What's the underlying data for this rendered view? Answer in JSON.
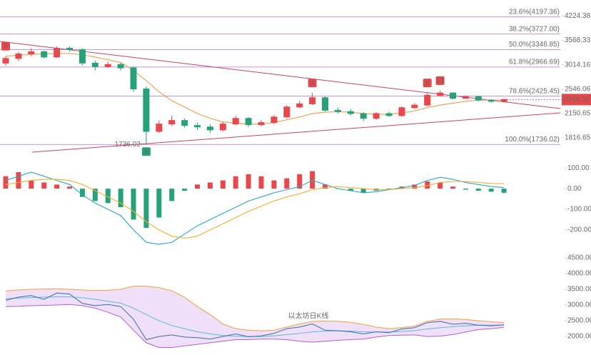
{
  "chart_data": [
    {
      "type": "candlestick",
      "log_scale": true,
      "ylim": [
        1630,
        4720
      ],
      "yticks": [
        4224.38,
        3568.33,
        3014.16,
        2546.06,
        2150.65,
        1816.65
      ],
      "up_color": "#e8474c",
      "down_color": "#26a17a",
      "open": [
        3050,
        3150,
        3250,
        3300,
        3180,
        3380,
        3350,
        3050,
        2980,
        3020,
        2950,
        2550,
        1900,
        2000,
        2050,
        1980,
        1960,
        1920,
        2000,
        2080,
        1990,
        2020,
        2100,
        2250,
        2300,
        2400,
        2200,
        2180,
        2150,
        2080,
        2150,
        2120,
        2240,
        2280,
        2440,
        2480,
        2390,
        2420,
        2360,
        2340
      ],
      "high": [
        3200,
        3300,
        3380,
        3320,
        3420,
        3420,
        3380,
        3100,
        3080,
        3060,
        2980,
        2600,
        2050,
        2120,
        2080,
        2020,
        2000,
        2030,
        2120,
        2100,
        2060,
        2130,
        2280,
        2350,
        2480,
        2420,
        2240,
        2220,
        2170,
        2170,
        2180,
        2260,
        2310,
        2480,
        2520,
        2490,
        2440,
        2430,
        2380,
        2390
      ],
      "low": [
        3000,
        3100,
        3200,
        3150,
        3160,
        3300,
        3000,
        2900,
        2950,
        2900,
        2500,
        1736.02,
        1880,
        1970,
        1950,
        1920,
        1880,
        1900,
        1980,
        1960,
        1970,
        2000,
        2080,
        2230,
        2280,
        2180,
        2150,
        2120,
        2040,
        2060,
        2100,
        2100,
        2220,
        2260,
        2420,
        2370,
        2380,
        2340,
        2320,
        2330
      ],
      "close": [
        3150,
        3250,
        3300,
        3180,
        3380,
        3350,
        3050,
        2980,
        3020,
        2950,
        2550,
        1900,
        2000,
        2050,
        1980,
        1960,
        1920,
        2000,
        2080,
        1990,
        2020,
        2100,
        2250,
        2300,
        2400,
        2200,
        2180,
        2150,
        2080,
        2150,
        2120,
        2240,
        2280,
        2440,
        2480,
        2390,
        2420,
        2360,
        2340,
        2369.26
      ],
      "ma": [
        3200,
        3220,
        3240,
        3250,
        3260,
        3260,
        3230,
        3180,
        3120,
        3060,
        2900,
        2700,
        2500,
        2350,
        2250,
        2150,
        2080,
        2030,
        2010,
        2000,
        2000,
        2020,
        2060,
        2100,
        2150,
        2170,
        2180,
        2170,
        2150,
        2140,
        2140,
        2160,
        2190,
        2240,
        2280,
        2310,
        2340,
        2360,
        2360,
        2365
      ],
      "ma_color": "#f0a35e",
      "fib_color": "#9b4fc0",
      "fib_levels": [
        {
          "value": 4197.36,
          "label": "23.6%(4197.36)"
        },
        {
          "value": 3727.0,
          "label": "38.2%(3727.00)"
        },
        {
          "value": 3346.85,
          "label": "50.0%(3346.85)"
        },
        {
          "value": 2966.69,
          "label": "61.8%(2966.69)"
        },
        {
          "value": 2425.45,
          "label": "78.6%(2425.45)"
        },
        {
          "value": 1736.02,
          "label": "100.0%(1736.02)"
        }
      ],
      "td": [
        9,
        null,
        null,
        null,
        null,
        null,
        null,
        null,
        null,
        null,
        null,
        9,
        null,
        null,
        null,
        null,
        null,
        null,
        null,
        null,
        null,
        null,
        null,
        null,
        9,
        null,
        null,
        null,
        null,
        null,
        null,
        null,
        null,
        9,
        13,
        null,
        null,
        null,
        null,
        null
      ]
    },
    {
      "type": "macd",
      "ylim": [
        -280,
        125
      ],
      "yticks": [
        {
          "value": 100,
          "label": "100.00"
        },
        {
          "value": 0,
          "label": "0.00"
        },
        {
          "value": -100,
          "label": "-100.00"
        },
        {
          "value": -200,
          "label": "-200.00"
        }
      ],
      "histogram": [
        60,
        80,
        40,
        30,
        20,
        10,
        -40,
        -60,
        -70,
        -90,
        -150,
        -190,
        -140,
        -60,
        -10,
        20,
        30,
        40,
        60,
        70,
        60,
        40,
        50,
        70,
        85,
        20,
        0,
        -10,
        -20,
        -10,
        -5,
        10,
        20,
        35,
        30,
        10,
        -5,
        -10,
        -15,
        -20
      ],
      "dif": [
        40,
        60,
        80,
        60,
        40,
        20,
        -30,
        -70,
        -100,
        -130,
        -200,
        -260,
        -270,
        -260,
        -220,
        -180,
        -150,
        -120,
        -90,
        -60,
        -40,
        -20,
        -5,
        10,
        40,
        20,
        0,
        -10,
        -20,
        -15,
        -5,
        5,
        15,
        40,
        55,
        45,
        30,
        20,
        10,
        5
      ],
      "dea": [
        20,
        30,
        40,
        45,
        45,
        40,
        20,
        -10,
        -40,
        -70,
        -110,
        -160,
        -200,
        -230,
        -240,
        -230,
        -200,
        -170,
        -140,
        -110,
        -85,
        -60,
        -40,
        -25,
        -5,
        5,
        10,
        5,
        0,
        -5,
        -5,
        0,
        5,
        15,
        30,
        35,
        35,
        30,
        25,
        25
      ],
      "dif_color": "#2aa6c9",
      "dea_color": "#f0b030"
    },
    {
      "type": "bollinger",
      "ylim": [
        1570,
        4750
      ],
      "yticks": [
        {
          "value": 4500,
          "label": "4500.00"
        },
        {
          "value": 4000,
          "label": "4000.00"
        },
        {
          "value": 3500,
          "label": "3500.00"
        },
        {
          "value": 3000,
          "label": "3000.00"
        },
        {
          "value": 2500,
          "label": "2500.00"
        },
        {
          "value": 2000,
          "label": "2000.00"
        }
      ],
      "upper": [
        3450,
        3480,
        3500,
        3510,
        3520,
        3500,
        3480,
        3460,
        3470,
        3500,
        3600,
        3600,
        3550,
        3450,
        3250,
        2950,
        2700,
        2400,
        2250,
        2200,
        2180,
        2200,
        2300,
        2400,
        2480,
        2490,
        2480,
        2450,
        2380,
        2300,
        2250,
        2280,
        2330,
        2480,
        2550,
        2560,
        2540,
        2500,
        2470,
        2440
      ],
      "middle": [
        3200,
        3220,
        3240,
        3250,
        3260,
        3260,
        3230,
        3180,
        3120,
        3060,
        2900,
        2700,
        2500,
        2350,
        2250,
        2150,
        2080,
        2030,
        2010,
        2000,
        2000,
        2020,
        2060,
        2100,
        2150,
        2170,
        2180,
        2170,
        2150,
        2140,
        2140,
        2160,
        2190,
        2240,
        2280,
        2310,
        2340,
        2360,
        2360,
        2365
      ],
      "lower": [
        2950,
        2960,
        2980,
        2990,
        3000,
        3020,
        2980,
        2900,
        2770,
        2620,
        2200,
        1800,
        1650,
        1650,
        1700,
        1750,
        1800,
        1850,
        1900,
        1900,
        1920,
        1920,
        1900,
        1850,
        1820,
        1850,
        1880,
        1900,
        1920,
        1980,
        2030,
        2040,
        2050,
        2000,
        2010,
        2060,
        2140,
        2220,
        2250,
        2290
      ],
      "band_fill": "#ecd7f7",
      "upper_color": "#f0a040",
      "middle_color": "#5bb8e0",
      "lower_color": "#b060d0",
      "price_color": "#3a6ea5",
      "watermark": "以太坊日K线"
    }
  ]
}
